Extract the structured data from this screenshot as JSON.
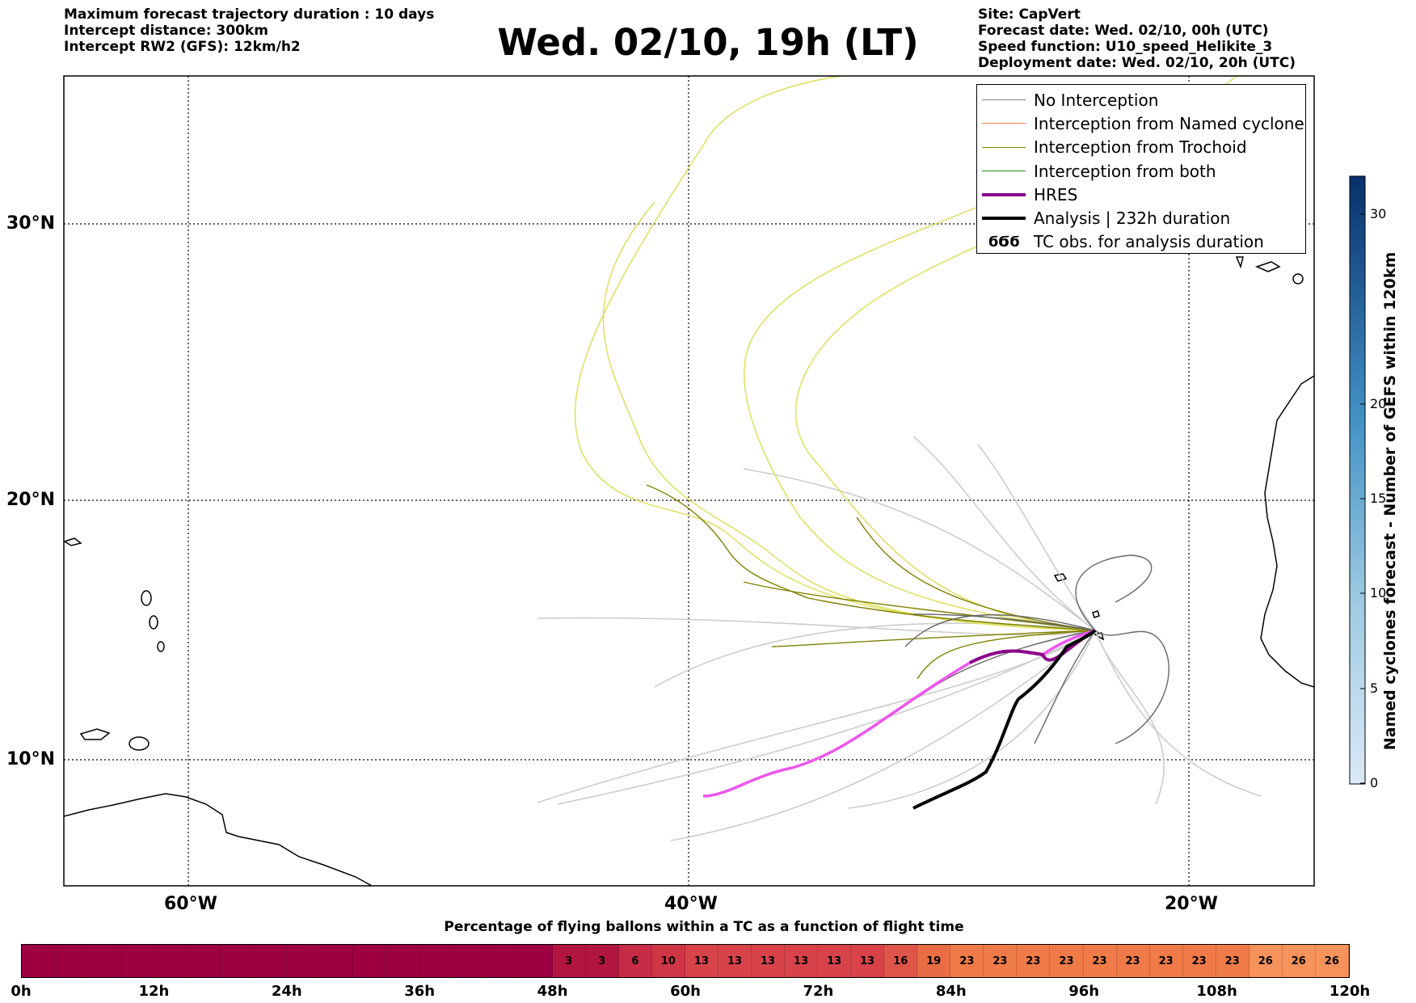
{
  "header_left": [
    "Maximum forecast trajectory duration : 10 days",
    "Intercept distance: 300km",
    "Intercept RW2 (GFS):  12km/h2"
  ],
  "title": "Wed. 02/10, 19h (LT)",
  "header_right": [
    "Site: CapVert",
    "Forecast date: Wed. 02/10, 00h (UTC)",
    "Speed function: U10_speed_Helikite_3",
    "Deployment date: Wed. 02/10, 20h (UTC)"
  ],
  "map": {
    "lon_ticks": [
      "60°W",
      "40°W",
      "20°W"
    ],
    "lat_ticks": [
      "30°N",
      "20°N",
      "10°N"
    ],
    "lon_range": [
      -65,
      -15
    ],
    "lat_range": [
      5.5,
      35
    ],
    "grid": true
  },
  "legend": {
    "items": [
      {
        "label": "No Interception",
        "color": "#888888",
        "style": "thin"
      },
      {
        "label": "Interception from Named cyclone",
        "color": "#ff7f50",
        "style": "thin"
      },
      {
        "label": "Interception from Trochoid",
        "color": "#808000",
        "style": "thin"
      },
      {
        "label": "Interception from both",
        "color": "#228b22",
        "style": "thin"
      },
      {
        "label": "HRES",
        "color": "#8b008b",
        "style": "thick"
      },
      {
        "label": "Analysis | 232h duration",
        "color": "#000000",
        "style": "thick"
      },
      {
        "label": "TC obs. for analysis duration",
        "icon": "cyclone-symbols-icon",
        "glyph": "ϭϬϭ"
      }
    ]
  },
  "colorbar": {
    "label": "Named cyclones forecast - Number of GEFS within 120km",
    "ticks": [
      "30",
      "20",
      "15",
      "10",
      "5",
      "0"
    ],
    "range": [
      0,
      32
    ],
    "low_color": "#dbe9f6",
    "high_color": "#08306b"
  },
  "time_bar": {
    "title": "Percentage of flying ballons within a TC as a function of flight time",
    "tick_labels": [
      "0h",
      "12h",
      "24h",
      "36h",
      "48h",
      "60h",
      "72h",
      "84h",
      "96h",
      "108h",
      "120h"
    ],
    "segment_hours": 3,
    "percentages": [
      0,
      0,
      0,
      0,
      0,
      0,
      0,
      0,
      0,
      0,
      0,
      0,
      0,
      0,
      0,
      0,
      3,
      3,
      6,
      10,
      13,
      13,
      13,
      13,
      13,
      13,
      16,
      19,
      23,
      23,
      23,
      23,
      23,
      23,
      23,
      23,
      23,
      26,
      26,
      26
    ]
  }
}
